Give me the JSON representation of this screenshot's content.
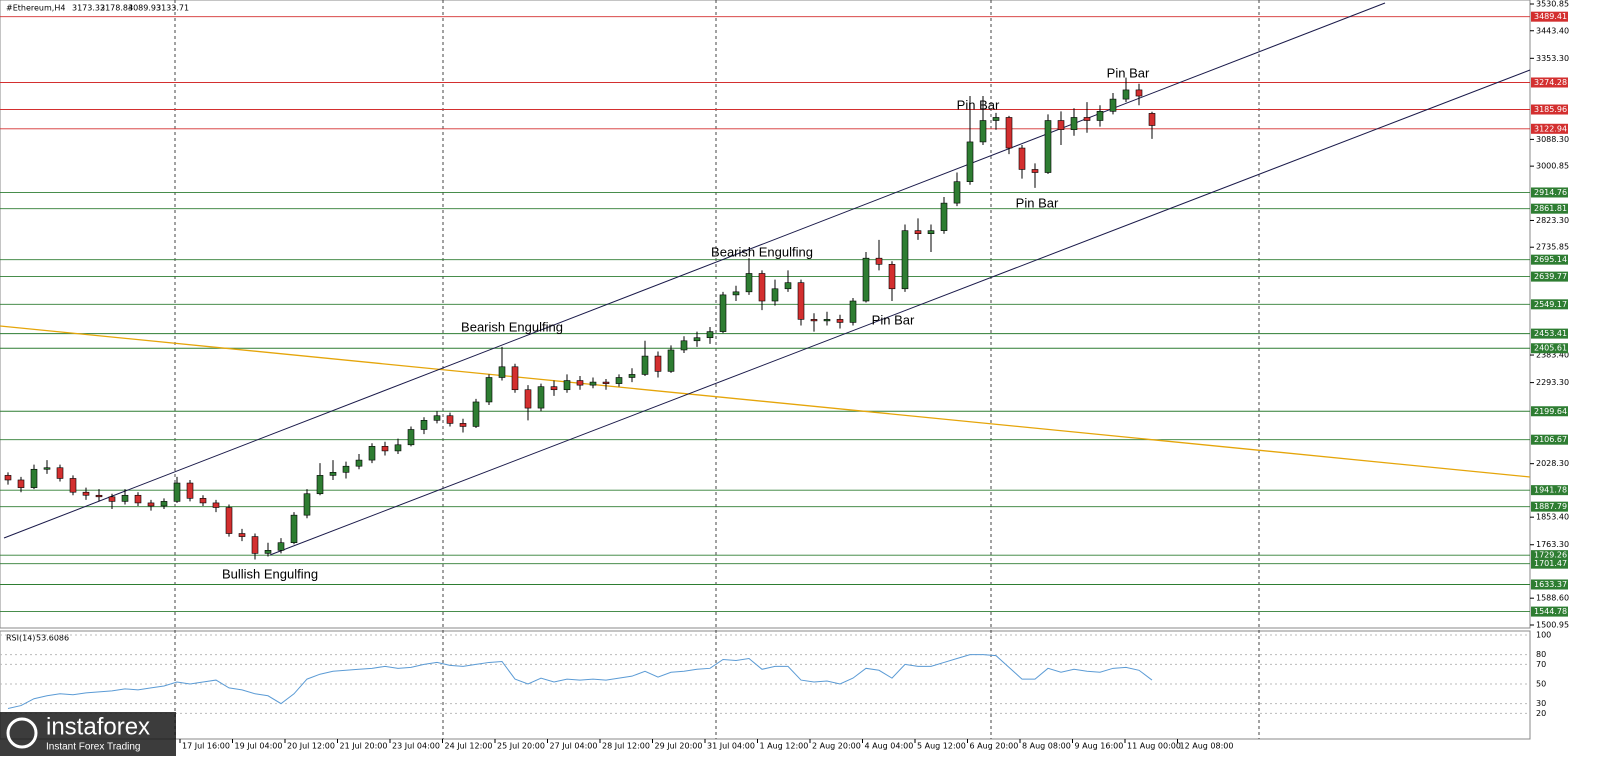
{
  "chart_data": {
    "type": "candlestick",
    "symbol": "#Ethereum,H4",
    "up_color": "#2e7d32",
    "down_color": "#d32f2f",
    "candles": [
      [
        1990,
        2000,
        1960,
        1975
      ],
      [
        1975,
        1985,
        1935,
        1950
      ],
      [
        1950,
        2025,
        1945,
        2010
      ],
      [
        2010,
        2040,
        1995,
        2015
      ],
      [
        2015,
        2025,
        1970,
        1980
      ],
      [
        1980,
        1990,
        1925,
        1935
      ],
      [
        1935,
        1950,
        1910,
        1925
      ],
      [
        1925,
        1945,
        1905,
        1920
      ],
      [
        1920,
        1930,
        1880,
        1905
      ],
      [
        1905,
        1945,
        1895,
        1925
      ],
      [
        1925,
        1935,
        1890,
        1900
      ],
      [
        1900,
        1910,
        1875,
        1890
      ],
      [
        1890,
        1915,
        1880,
        1905
      ],
      [
        1905,
        1985,
        1900,
        1965
      ],
      [
        1965,
        1975,
        1905,
        1915
      ],
      [
        1915,
        1925,
        1890,
        1900
      ],
      [
        1900,
        1910,
        1870,
        1885
      ],
      [
        1885,
        1895,
        1790,
        1800
      ],
      [
        1800,
        1815,
        1775,
        1790
      ],
      [
        1790,
        1800,
        1715,
        1735
      ],
      [
        1735,
        1770,
        1725,
        1745
      ],
      [
        1745,
        1785,
        1735,
        1770
      ],
      [
        1770,
        1870,
        1765,
        1860
      ],
      [
        1860,
        1945,
        1850,
        1930
      ],
      [
        1930,
        2030,
        1925,
        1990
      ],
      [
        1990,
        2040,
        1975,
        2000
      ],
      [
        2000,
        2035,
        1980,
        2020
      ],
      [
        2020,
        2060,
        2010,
        2040
      ],
      [
        2040,
        2095,
        2030,
        2085
      ],
      [
        2085,
        2100,
        2055,
        2070
      ],
      [
        2070,
        2110,
        2060,
        2090
      ],
      [
        2090,
        2150,
        2085,
        2140
      ],
      [
        2140,
        2180,
        2125,
        2170
      ],
      [
        2170,
        2200,
        2160,
        2185
      ],
      [
        2185,
        2195,
        2150,
        2160
      ],
      [
        2160,
        2175,
        2130,
        2150
      ],
      [
        2150,
        2240,
        2145,
        2230
      ],
      [
        2230,
        2320,
        2220,
        2310
      ],
      [
        2310,
        2410,
        2300,
        2345
      ],
      [
        2345,
        2355,
        2260,
        2270
      ],
      [
        2270,
        2285,
        2170,
        2210
      ],
      [
        2210,
        2290,
        2200,
        2280
      ],
      [
        2280,
        2300,
        2250,
        2270
      ],
      [
        2270,
        2320,
        2260,
        2300
      ],
      [
        2300,
        2315,
        2270,
        2285
      ],
      [
        2285,
        2310,
        2275,
        2295
      ],
      [
        2295,
        2305,
        2270,
        2290
      ],
      [
        2290,
        2320,
        2280,
        2310
      ],
      [
        2310,
        2340,
        2295,
        2320
      ],
      [
        2320,
        2430,
        2315,
        2380
      ],
      [
        2380,
        2395,
        2310,
        2330
      ],
      [
        2330,
        2415,
        2325,
        2400
      ],
      [
        2400,
        2445,
        2390,
        2430
      ],
      [
        2430,
        2460,
        2410,
        2440
      ],
      [
        2440,
        2475,
        2420,
        2460
      ],
      [
        2460,
        2590,
        2455,
        2580
      ],
      [
        2580,
        2610,
        2560,
        2590
      ],
      [
        2590,
        2700,
        2580,
        2650
      ],
      [
        2650,
        2660,
        2530,
        2560
      ],
      [
        2560,
        2630,
        2545,
        2600
      ],
      [
        2600,
        2660,
        2590,
        2620
      ],
      [
        2620,
        2630,
        2480,
        2500
      ],
      [
        2500,
        2520,
        2460,
        2495
      ],
      [
        2495,
        2525,
        2480,
        2500
      ],
      [
        2500,
        2515,
        2470,
        2490
      ],
      [
        2490,
        2570,
        2480,
        2560
      ],
      [
        2560,
        2720,
        2555,
        2700
      ],
      [
        2700,
        2760,
        2660,
        2680
      ],
      [
        2680,
        2690,
        2560,
        2600
      ],
      [
        2600,
        2810,
        2590,
        2790
      ],
      [
        2790,
        2830,
        2760,
        2780
      ],
      [
        2780,
        2810,
        2720,
        2790
      ],
      [
        2790,
        2900,
        2780,
        2880
      ],
      [
        2880,
        2980,
        2870,
        2950
      ],
      [
        2950,
        3230,
        2940,
        3080
      ],
      [
        3080,
        3230,
        3070,
        3150
      ],
      [
        3150,
        3175,
        3120,
        3160
      ],
      [
        3160,
        3165,
        3040,
        3060
      ],
      [
        3060,
        3070,
        2960,
        2990
      ],
      [
        2990,
        3010,
        2930,
        2980
      ],
      [
        2980,
        3170,
        2975,
        3150
      ],
      [
        3150,
        3180,
        3070,
        3120
      ],
      [
        3120,
        3190,
        3100,
        3160
      ],
      [
        3160,
        3210,
        3110,
        3150
      ],
      [
        3150,
        3200,
        3130,
        3180
      ],
      [
        3180,
        3240,
        3170,
        3220
      ],
      [
        3220,
        3290,
        3210,
        3250
      ],
      [
        3250,
        3270,
        3200,
        3230
      ],
      [
        3173.32,
        3178.84,
        3089.93,
        3133.71
      ]
    ],
    "ylim": [
      1500.95,
      3530.85
    ],
    "yticks": [
      {
        "value": 3530.85,
        "label": "3530.85"
      },
      {
        "value": 3443.4,
        "label": "3443.40"
      },
      {
        "value": 3353.3,
        "label": "3353.30"
      },
      {
        "value": 3088.3,
        "label": "3088.30"
      },
      {
        "value": 3000.85,
        "label": "3000.85"
      },
      {
        "value": 2823.3,
        "label": "2823.30"
      },
      {
        "value": 2735.85,
        "label": "2735.85"
      },
      {
        "value": 2383.4,
        "label": "2383.40"
      },
      {
        "value": 2293.3,
        "label": "2293.30"
      },
      {
        "value": 2028.3,
        "label": "2028.30"
      },
      {
        "value": 1853.4,
        "label": "1853.40"
      },
      {
        "value": 1763.3,
        "label": "1763.30"
      },
      {
        "value": 1588.6,
        "label": "1588.60"
      },
      {
        "value": 1500.95,
        "label": "1500.95"
      }
    ],
    "levels": [
      {
        "value": 3489.41,
        "color": "#d32f2f"
      },
      {
        "value": 3274.28,
        "color": "#d32f2f"
      },
      {
        "value": 3185.96,
        "color": "#d32f2f"
      },
      {
        "value": 3122.94,
        "color": "#d32f2f"
      },
      {
        "value": 2914.76,
        "color": "#2e7d32"
      },
      {
        "value": 2861.81,
        "color": "#2e7d32"
      },
      {
        "value": 2695.14,
        "color": "#2e7d32"
      },
      {
        "value": 2639.77,
        "color": "#2e7d32"
      },
      {
        "value": 2549.17,
        "color": "#2e7d32"
      },
      {
        "value": 2453.41,
        "color": "#2e7d32"
      },
      {
        "value": 2405.61,
        "color": "#2e7d32"
      },
      {
        "value": 2199.64,
        "color": "#2e7d32"
      },
      {
        "value": 2106.67,
        "color": "#2e7d32"
      },
      {
        "value": 1941.78,
        "color": "#2e7d32"
      },
      {
        "value": 1887.79,
        "color": "#2e7d32"
      },
      {
        "value": 1729.26,
        "color": "#2e7d32"
      },
      {
        "value": 1701.47,
        "color": "#2e7d32"
      },
      {
        "value": 1633.37,
        "color": "#2e7d32"
      },
      {
        "value": 1544.78,
        "color": "#2e7d32"
      }
    ],
    "xlabels": [
      "17 Jul 16:00",
      "19 Jul 04:00",
      "20 Jul 12:00",
      "21 Jul 20:00",
      "23 Jul 04:00",
      "24 Jul 12:00",
      "25 Jul 20:00",
      "27 Jul 04:00",
      "28 Jul 12:00",
      "29 Jul 20:00",
      "31 Jul 04:00",
      "1 Aug 12:00",
      "2 Aug 20:00",
      "4 Aug 04:00",
      "5 Aug 12:00",
      "6 Aug 20:00",
      "8 Aug 08:00",
      "9 Aug 16:00",
      "11 Aug 00:00",
      "12 Aug 08:00"
    ],
    "annotations": [
      "Bullish Engulfing",
      "Bearish Engulfing",
      "Bearish Engulfing",
      "Pin Bar",
      "Pin Bar",
      "Pin Bar",
      "Pin Bar"
    ],
    "rsi": {
      "name": "RSI(14)",
      "current": 53.6086,
      "color": "#5b9bd5",
      "ylim": [
        0,
        100
      ],
      "yticks": [
        100,
        80,
        70,
        50,
        30,
        20
      ],
      "values": [
        25,
        28,
        35,
        38,
        40,
        39,
        41,
        42,
        43,
        45,
        44,
        46,
        48,
        52,
        50,
        52,
        54,
        46,
        44,
        40,
        38,
        30,
        40,
        55,
        60,
        63,
        64,
        65,
        66,
        68,
        66,
        67,
        70,
        72,
        69,
        68,
        70,
        72,
        73,
        55,
        50,
        56,
        52,
        55,
        54,
        55,
        54,
        56,
        58,
        63,
        57,
        62,
        63,
        65,
        66,
        75,
        74,
        76,
        65,
        68,
        68,
        54,
        52,
        53,
        50,
        56,
        66,
        64,
        56,
        70,
        68,
        68,
        72,
        76,
        80,
        80,
        79,
        67,
        55,
        55,
        66,
        62,
        65,
        63,
        62,
        66,
        67,
        64,
        54
      ]
    },
    "logo": {
      "name": "instaforex",
      "tagline": "Instant Forex Trading"
    }
  }
}
